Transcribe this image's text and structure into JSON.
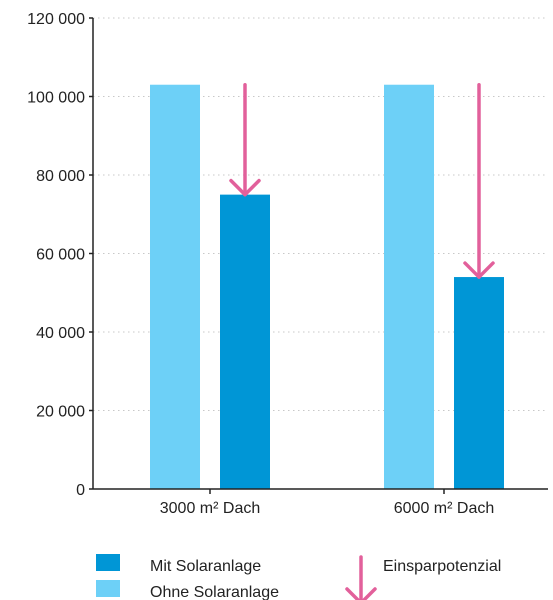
{
  "chart_data": {
    "type": "bar",
    "categories": [
      "3000 m² Dach",
      "6000 m² Dach"
    ],
    "series": [
      {
        "name": "Ohne Solaranlage",
        "values": [
          103000,
          103000
        ],
        "color": "#6dd0f7"
      },
      {
        "name": "Mit Solaranlage",
        "values": [
          75000,
          54000
        ],
        "color": "#0096d6"
      }
    ],
    "ylim": [
      0,
      120000
    ],
    "yticks": [
      0,
      20000,
      40000,
      60000,
      80000,
      100000,
      120000
    ],
    "ytick_labels": [
      "0",
      "20 000",
      "40 000",
      "60 000",
      "80 000",
      "100 000",
      "120 000"
    ],
    "grid": true,
    "annotation": {
      "label": "Einsparpotenzial",
      "color": "#e2609b",
      "from": 103000
    },
    "legend": {
      "position": "bottom",
      "items": [
        {
          "label": "Mit Solaranlage",
          "color": "#0096d6"
        },
        {
          "label": "Ohne Solaranlage",
          "color": "#6dd0f7"
        },
        {
          "label": "Einsparpotenzial",
          "color": "#e2609b"
        }
      ]
    }
  }
}
